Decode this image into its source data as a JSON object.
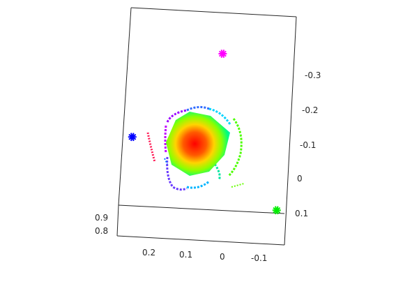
{
  "chart_data": {
    "type": "scatter",
    "title": "",
    "xlabel": "",
    "ylabel": "",
    "zlabel": "",
    "x_ticks": [
      "0.2",
      "0.1",
      "0",
      "-0.1"
    ],
    "y_ticks": [
      "-0.3",
      "-0.2",
      "-0.1",
      "0",
      "0.1"
    ],
    "z_ticks": [
      "0.9",
      "0.8"
    ],
    "grid": false,
    "legend": "none",
    "colormap": "hsv",
    "markers": [
      {
        "label": "",
        "color": "#ff00ff",
        "x": 0.04,
        "y": -0.35
      },
      {
        "label": "",
        "color": "#0000ff",
        "x": 0.25,
        "y": -0.08
      },
      {
        "label": "",
        "color": "#00ee00",
        "x": -0.15,
        "y": 0.07
      }
    ],
    "central_blob": {
      "x_range": [
        0.0,
        0.15
      ],
      "y_range": [
        -0.2,
        0.02
      ],
      "color_low": "#ff0000",
      "color_high": "#00ffff"
    }
  }
}
